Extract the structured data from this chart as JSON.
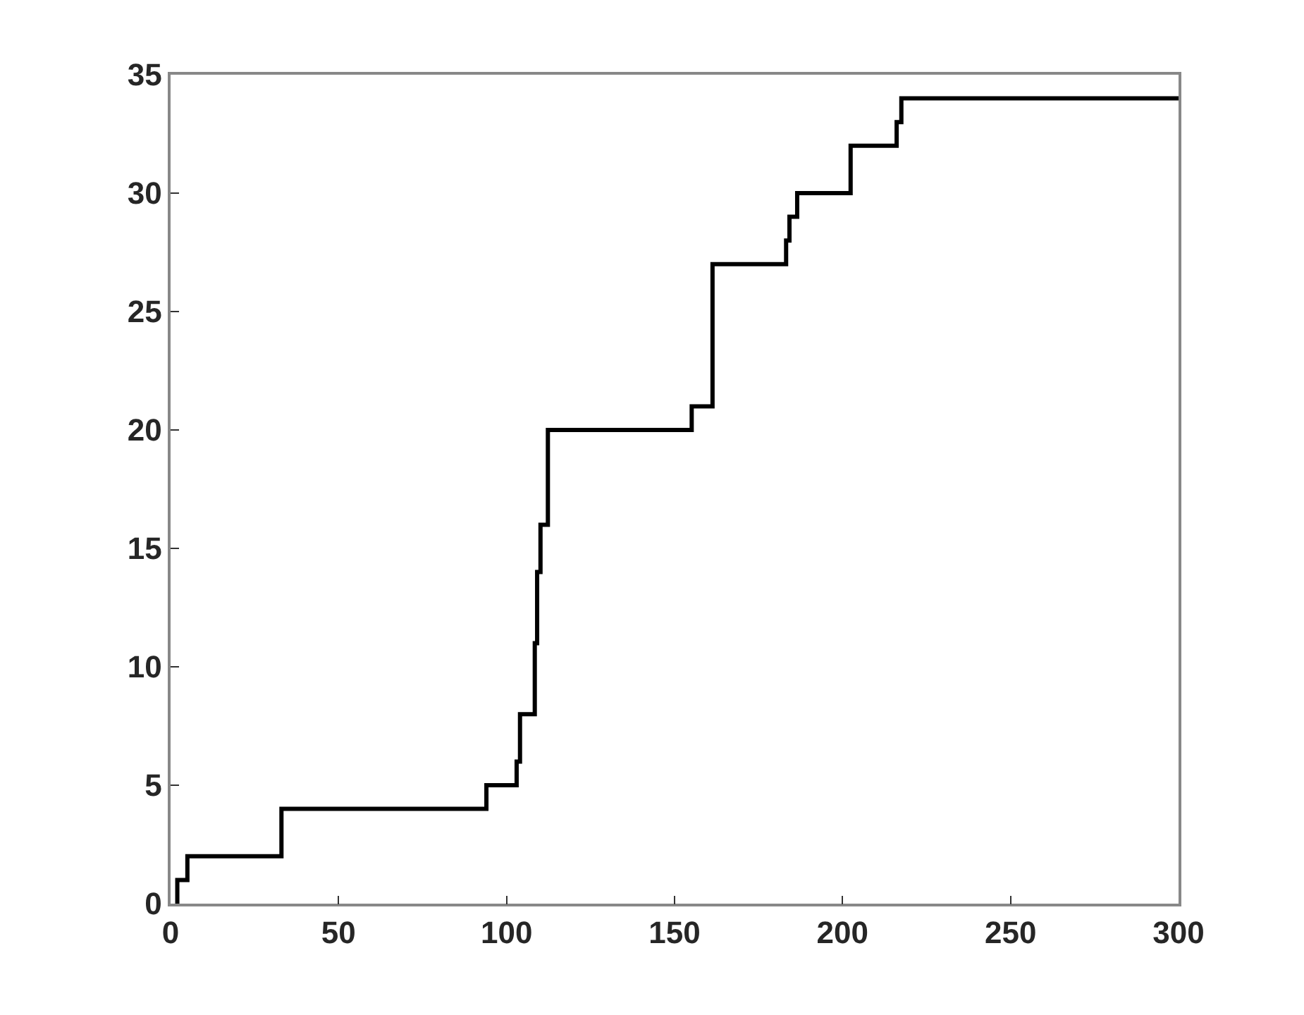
{
  "chart_data": {
    "type": "step",
    "x": [
      2,
      2,
      5,
      33,
      94,
      103,
      104,
      108.4,
      109.1,
      110.1,
      112.3,
      155.1,
      161.3,
      183.2,
      184.2,
      186.5,
      202.4,
      216.1,
      217.5,
      300
    ],
    "series": [
      {
        "color": "#000000",
        "values": [
          0,
          1,
          2,
          4,
          5,
          6,
          8,
          11,
          14,
          16,
          20,
          21,
          27,
          28,
          29,
          30,
          32,
          33,
          34,
          34
        ]
      }
    ],
    "xlim": [
      0,
      300
    ],
    "xticks": [
      0,
      50,
      100,
      150,
      200,
      250,
      300
    ],
    "ylim": [
      0,
      35
    ],
    "yticks": [
      0,
      5,
      10,
      15,
      20,
      25,
      30,
      35
    ],
    "marker": "none",
    "line_style": "solid"
  }
}
